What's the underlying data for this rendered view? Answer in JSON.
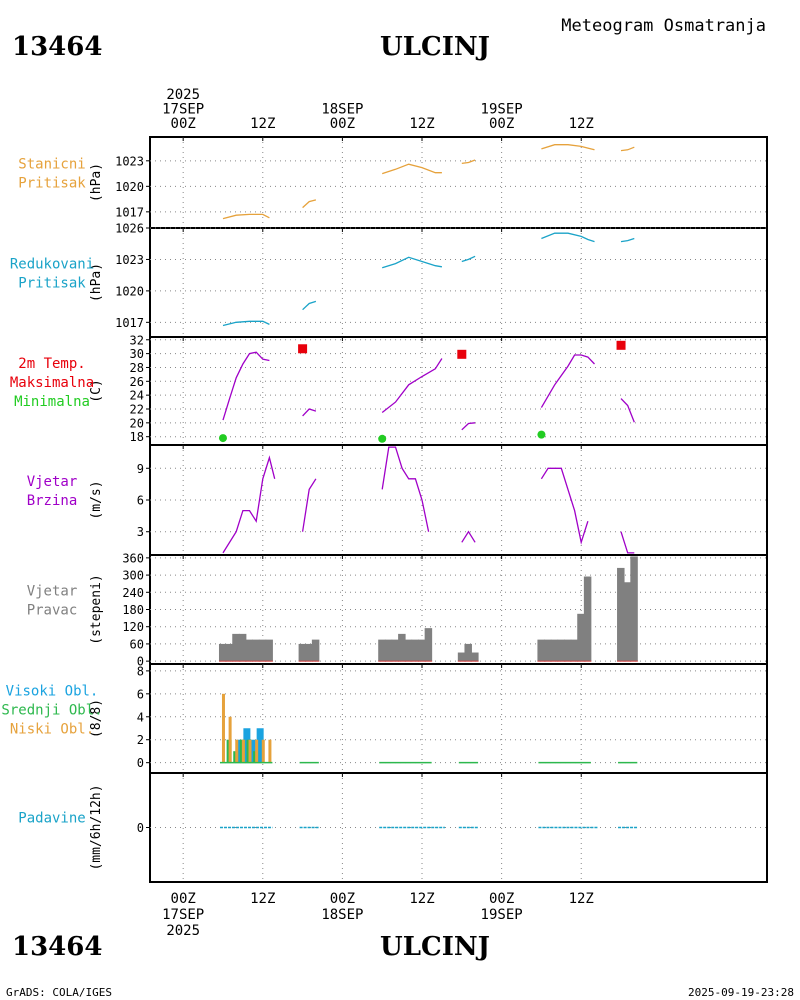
{
  "header": {
    "station_id": "13464",
    "station_name": "ULCINJ",
    "product": "Meteogram Osmatranja"
  },
  "footer": {
    "credit": "GrADS: COLA/IGES",
    "generated": "2025-09-19-23:28"
  },
  "colors": {
    "pressure": "#e6a23c",
    "reduced": "#1aa3c8",
    "tmax": "#e8000b",
    "tmin": "#22cc22",
    "purple": "#a000c8",
    "bars": "#808080",
    "cloud_high": "#1aa3e0",
    "cloud_mid": "#2db84d",
    "cloud_low": "#e6a23c",
    "precip": "#1aa3c8"
  },
  "time_axis": {
    "hour_range": [
      -5,
      88
    ],
    "top_ticks": [
      {
        "h": 0,
        "labels": [
          "2025",
          "17SEP",
          "00Z"
        ]
      },
      {
        "h": 12,
        "labels": [
          "12Z"
        ]
      },
      {
        "h": 24,
        "labels": [
          "18SEP",
          "00Z"
        ]
      },
      {
        "h": 36,
        "labels": [
          "12Z"
        ]
      },
      {
        "h": 48,
        "labels": [
          "19SEP",
          "00Z"
        ]
      },
      {
        "h": 60,
        "labels": [
          "12Z"
        ]
      }
    ],
    "bottom_ticks": [
      {
        "h": 0,
        "labels": [
          "00Z",
          "17SEP",
          "2025"
        ]
      },
      {
        "h": 12,
        "labels": [
          "12Z"
        ]
      },
      {
        "h": 24,
        "labels": [
          "00Z",
          "18SEP"
        ]
      },
      {
        "h": 36,
        "labels": [
          "12Z"
        ]
      },
      {
        "h": 48,
        "labels": [
          "00Z",
          "19SEP"
        ]
      },
      {
        "h": 60,
        "labels": [
          "12Z"
        ]
      }
    ]
  },
  "chart_data": [
    {
      "id": "station_pressure",
      "type": "line",
      "title_lines": [
        "Stanicni",
        "Pritisak"
      ],
      "ylabel": "(hPa)",
      "ylim": [
        1015.1,
        1025.8
      ],
      "yticks": [
        1017,
        1020,
        1023
      ],
      "series": [
        {
          "name": "Stanicni Pritisak",
          "color_key": "pressure",
          "segments": [
            [
              [
                6,
                1016.2
              ],
              [
                8,
                1016.6
              ],
              [
                10,
                1016.7
              ],
              [
                12,
                1016.7
              ],
              [
                13,
                1016.3
              ]
            ],
            [
              [
                18,
                1017.5
              ],
              [
                19,
                1018.2
              ],
              [
                20,
                1018.4
              ]
            ],
            [
              [
                30,
                1021.5
              ],
              [
                32,
                1022.0
              ],
              [
                34,
                1022.6
              ],
              [
                36,
                1022.2
              ],
              [
                38,
                1021.6
              ],
              [
                39,
                1021.6
              ]
            ],
            [
              [
                42,
                1022.7
              ],
              [
                43,
                1022.8
              ],
              [
                44,
                1023.1
              ]
            ],
            [
              [
                54,
                1024.4
              ],
              [
                56,
                1024.9
              ],
              [
                58,
                1024.9
              ],
              [
                60,
                1024.7
              ],
              [
                61,
                1024.5
              ],
              [
                62,
                1024.3
              ]
            ],
            [
              [
                66,
                1024.2
              ],
              [
                67,
                1024.3
              ],
              [
                68,
                1024.6
              ]
            ]
          ]
        }
      ]
    },
    {
      "id": "reduced_pressure",
      "type": "line",
      "title_lines": [
        "Redukovani",
        "Pritisak"
      ],
      "ylabel": "(hPa)",
      "ylim": [
        1015.6,
        1026.0
      ],
      "yticks": [
        1017,
        1020,
        1023,
        1026
      ],
      "series": [
        {
          "name": "Redukovani Pritisak",
          "color_key": "reduced",
          "segments": [
            [
              [
                6,
                1016.7
              ],
              [
                8,
                1017.0
              ],
              [
                10,
                1017.1
              ],
              [
                12,
                1017.1
              ],
              [
                13,
                1016.8
              ]
            ],
            [
              [
                18,
                1018.2
              ],
              [
                19,
                1018.8
              ],
              [
                20,
                1019.0
              ]
            ],
            [
              [
                30,
                1022.2
              ],
              [
                32,
                1022.6
              ],
              [
                34,
                1023.2
              ],
              [
                36,
                1022.8
              ],
              [
                38,
                1022.4
              ],
              [
                39,
                1022.3
              ]
            ],
            [
              [
                42,
                1022.8
              ],
              [
                43,
                1023.0
              ],
              [
                44,
                1023.3
              ]
            ],
            [
              [
                54,
                1025.0
              ],
              [
                56,
                1025.5
              ],
              [
                58,
                1025.5
              ],
              [
                60,
                1025.2
              ],
              [
                61,
                1024.9
              ],
              [
                62,
                1024.7
              ]
            ],
            [
              [
                66,
                1024.7
              ],
              [
                67,
                1024.8
              ],
              [
                68,
                1025.0
              ]
            ]
          ]
        }
      ]
    },
    {
      "id": "temperature",
      "type": "line",
      "title_lines": [
        "2m Temp.",
        "Maksimalna",
        "Minimalna"
      ],
      "title_color_keys": [
        "tmax",
        "tmax",
        "tmin"
      ],
      "ylabel": "(C)",
      "ylim": [
        16.8,
        32.4
      ],
      "yticks": [
        18,
        20,
        22,
        24,
        26,
        28,
        30,
        32
      ],
      "series": [
        {
          "name": "2m Temp.",
          "color_key": "purple",
          "segments": [
            [
              [
                6,
                20.4
              ],
              [
                7,
                23.5
              ],
              [
                8,
                26.5
              ],
              [
                9,
                28.5
              ],
              [
                10,
                30.0
              ],
              [
                11,
                30.2
              ],
              [
                12,
                29.2
              ],
              [
                13,
                29.0
              ]
            ],
            [
              [
                18,
                21.0
              ],
              [
                19,
                22.0
              ],
              [
                20,
                21.7
              ]
            ],
            [
              [
                30,
                21.5
              ],
              [
                32,
                23.0
              ],
              [
                34,
                25.5
              ],
              [
                36,
                26.7
              ],
              [
                38,
                27.8
              ],
              [
                39,
                29.3
              ]
            ],
            [
              [
                42,
                19.0
              ],
              [
                43,
                19.9
              ],
              [
                44,
                20.0
              ]
            ],
            [
              [
                54,
                22.2
              ],
              [
                56,
                25.5
              ],
              [
                58,
                28.2
              ],
              [
                59,
                29.8
              ],
              [
                60,
                29.8
              ],
              [
                61,
                29.5
              ],
              [
                62,
                28.5
              ]
            ],
            [
              [
                66,
                23.5
              ],
              [
                67,
                22.5
              ],
              [
                68,
                20.1
              ]
            ]
          ]
        },
        {
          "name": "Maksimalna",
          "color_key": "tmax",
          "marker": "square",
          "points": [
            [
              18,
              30.7
            ],
            [
              42,
              29.9
            ],
            [
              66,
              31.2
            ]
          ]
        },
        {
          "name": "Minimalna",
          "color_key": "tmin",
          "marker": "circle",
          "points": [
            [
              6,
              17.8
            ],
            [
              30,
              17.7
            ],
            [
              54,
              18.3
            ]
          ]
        }
      ]
    },
    {
      "id": "wind_speed",
      "type": "line",
      "title_lines": [
        "Vjetar",
        "Brzina"
      ],
      "ylabel": "(m/s)",
      "ylim": [
        0.8,
        11.2
      ],
      "yticks": [
        3,
        6,
        9
      ],
      "series": [
        {
          "name": "Vjetar Brzina",
          "color_key": "purple",
          "segments": [
            [
              [
                6,
                1.0
              ],
              [
                8,
                3.0
              ],
              [
                9,
                5.0
              ],
              [
                10,
                5.0
              ],
              [
                11,
                4.0
              ],
              [
                12,
                8.0
              ],
              [
                13,
                10.0
              ],
              [
                13.8,
                8.0
              ]
            ],
            [
              [
                18,
                3.0
              ],
              [
                19,
                7.0
              ],
              [
                20,
                8.0
              ]
            ],
            [
              [
                30,
                7.0
              ],
              [
                31,
                11.0
              ],
              [
                32,
                11.0
              ],
              [
                33,
                9.0
              ],
              [
                34,
                8.0
              ],
              [
                35,
                8.0
              ],
              [
                36,
                6.0
              ],
              [
                37,
                3.0
              ]
            ],
            [
              [
                42,
                2.0
              ],
              [
                43,
                3.0
              ],
              [
                44,
                2.0
              ]
            ],
            [
              [
                54,
                8.0
              ],
              [
                55,
                9.0
              ],
              [
                57,
                9.0
              ],
              [
                59,
                5.0
              ],
              [
                60,
                2.0
              ],
              [
                61,
                4.0
              ]
            ],
            [
              [
                66,
                3.0
              ],
              [
                67,
                1.0
              ],
              [
                68,
                1.0
              ]
            ]
          ]
        }
      ]
    },
    {
      "id": "wind_direction",
      "type": "bar",
      "title_lines": [
        "Vjetar",
        "Pravac"
      ],
      "ylabel": "(stepeni)",
      "ylim": [
        -10,
        370
      ],
      "yticks": [
        0,
        60,
        120,
        180,
        240,
        300,
        360
      ],
      "series": [
        {
          "name": "Vjetar Pravac",
          "color_key": "bars",
          "points": [
            [
              6,
              60
            ],
            [
              7,
              60
            ],
            [
              8,
              95
            ],
            [
              9,
              95
            ],
            [
              10,
              75
            ],
            [
              11,
              75
            ],
            [
              12,
              75
            ],
            [
              13,
              75
            ],
            [
              18,
              60
            ],
            [
              19,
              60
            ],
            [
              20,
              75
            ],
            [
              30,
              75
            ],
            [
              31,
              75
            ],
            [
              32,
              75
            ],
            [
              33,
              95
            ],
            [
              34,
              75
            ],
            [
              35,
              75
            ],
            [
              36,
              75
            ],
            [
              37,
              115
            ],
            [
              42,
              30
            ],
            [
              43,
              60
            ],
            [
              44,
              30
            ],
            [
              54,
              75
            ],
            [
              55,
              75
            ],
            [
              56,
              75
            ],
            [
              57,
              75
            ],
            [
              58,
              75
            ],
            [
              59,
              75
            ],
            [
              60,
              165
            ],
            [
              61,
              295
            ],
            [
              66,
              325
            ],
            [
              67,
              275
            ],
            [
              68,
              365
            ]
          ]
        }
      ]
    },
    {
      "id": "clouds",
      "type": "bar",
      "title_lines": [
        "Visoki Obl.",
        "Srednji Obl.",
        "Niski Obl."
      ],
      "title_color_keys": [
        "cloud_high",
        "cloud_mid",
        "cloud_low"
      ],
      "ylabel": "(8/8)",
      "ylim": [
        -0.9,
        8.6
      ],
      "yticks": [
        0,
        2,
        4,
        6,
        8
      ],
      "series": [
        {
          "name": "Visoki Obl.",
          "color_key": "cloud_high",
          "points": [
            [
              8,
              2
            ],
            [
              9,
              3
            ],
            [
              10,
              2
            ],
            [
              11,
              3
            ]
          ]
        },
        {
          "name": "Srednji Obl.",
          "color_key": "cloud_mid",
          "points": [
            [
              6,
              0
            ],
            [
              7,
              2
            ],
            [
              8,
              1
            ],
            [
              9,
              2
            ],
            [
              10,
              2
            ],
            [
              11,
              1
            ]
          ]
        },
        {
          "name": "Niski Obl.",
          "color_key": "cloud_low",
          "points": [
            [
              6,
              6
            ],
            [
              7,
              4
            ],
            [
              8,
              2
            ],
            [
              9,
              2
            ],
            [
              10,
              2
            ],
            [
              11,
              2
            ],
            [
              12,
              2
            ],
            [
              13,
              2
            ]
          ]
        }
      ]
    },
    {
      "id": "precipitation",
      "type": "bar",
      "title_lines": [
        "Padavine"
      ],
      "ylabel": "(mm/6h/12h)",
      "ylim": [
        -1,
        1
      ],
      "yticks": [
        0
      ],
      "series": [
        {
          "name": "Padavine",
          "color_key": "precip",
          "segments": [
            [
              [
                6,
                0
              ],
              [
                13,
                0
              ]
            ],
            [
              [
                18,
                0
              ],
              [
                20,
                0
              ]
            ],
            [
              [
                30,
                0
              ],
              [
                39,
                0
              ]
            ],
            [
              [
                42,
                0
              ],
              [
                44,
                0
              ]
            ],
            [
              [
                54,
                0
              ],
              [
                62,
                0
              ]
            ],
            [
              [
                66,
                0
              ],
              [
                68,
                0
              ]
            ]
          ]
        }
      ]
    }
  ]
}
